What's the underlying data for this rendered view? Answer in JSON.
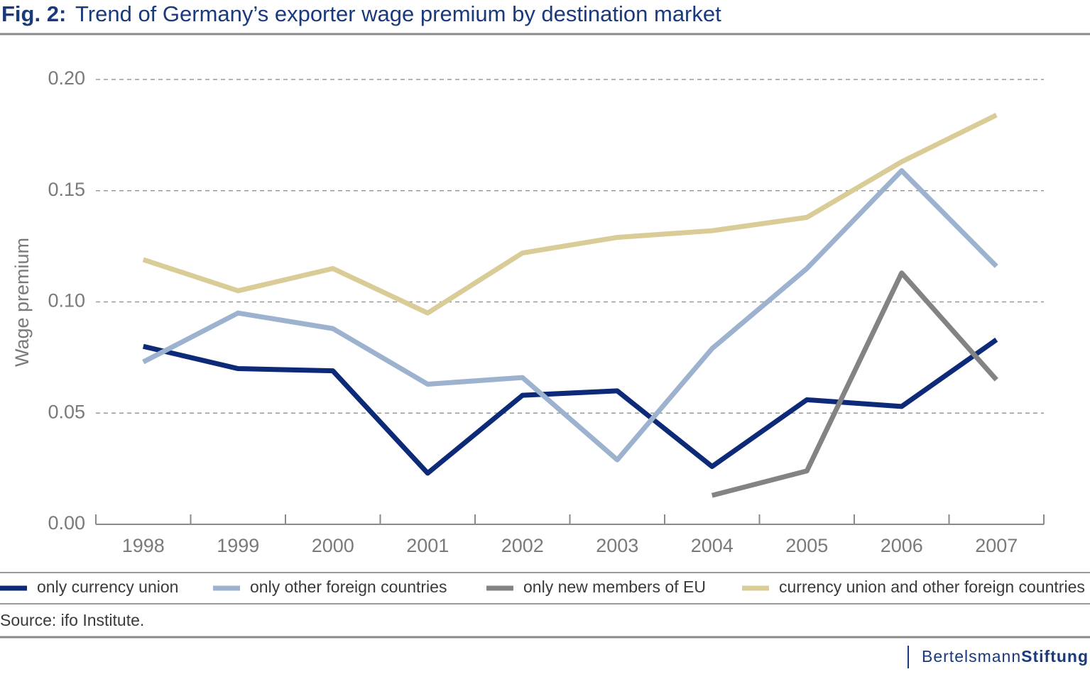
{
  "chart_data": {
    "type": "line",
    "figure_label": "Fig. 2:",
    "title": "Trend of Germany’s exporter wage premium by destination market",
    "y_label": "Wage premium",
    "categories": [
      "1998",
      "1999",
      "2000",
      "2001",
      "2002",
      "2003",
      "2004",
      "2005",
      "2006",
      "2007"
    ],
    "series": [
      {
        "name": "only currency union",
        "color": "#0c2a78",
        "values": [
          0.08,
          0.07,
          0.069,
          0.023,
          0.058,
          0.06,
          0.026,
          0.056,
          0.053,
          0.083
        ]
      },
      {
        "name": "only other foreign countries",
        "color": "#9cb2cf",
        "values": [
          0.073,
          0.095,
          0.088,
          0.063,
          0.066,
          0.029,
          0.079,
          0.115,
          0.159,
          0.116
        ]
      },
      {
        "name": "only new members of EU",
        "color": "#838383",
        "values": [
          null,
          null,
          null,
          null,
          null,
          null,
          0.013,
          0.024,
          0.113,
          0.065
        ]
      },
      {
        "name": "currency union and other foreign countries",
        "color": "#d9cc96",
        "values": [
          0.119,
          0.105,
          0.115,
          0.095,
          0.122,
          0.129,
          0.132,
          0.138,
          0.163,
          0.184
        ]
      }
    ],
    "ylim": [
      0,
      0.2
    ],
    "yticks": [
      {
        "value": 0,
        "label": "0.00"
      },
      {
        "value": 0.05,
        "label": "0.05"
      },
      {
        "value": 0.1,
        "label": "0.10"
      },
      {
        "value": 0.15,
        "label": "0.15"
      },
      {
        "value": 0.2,
        "label": "0.20"
      }
    ],
    "grid": true,
    "legend": "bottom",
    "source": "Source: ifo Institute.",
    "logo": {
      "part1": "Bertelsmann",
      "part2": "Stiftung"
    }
  }
}
